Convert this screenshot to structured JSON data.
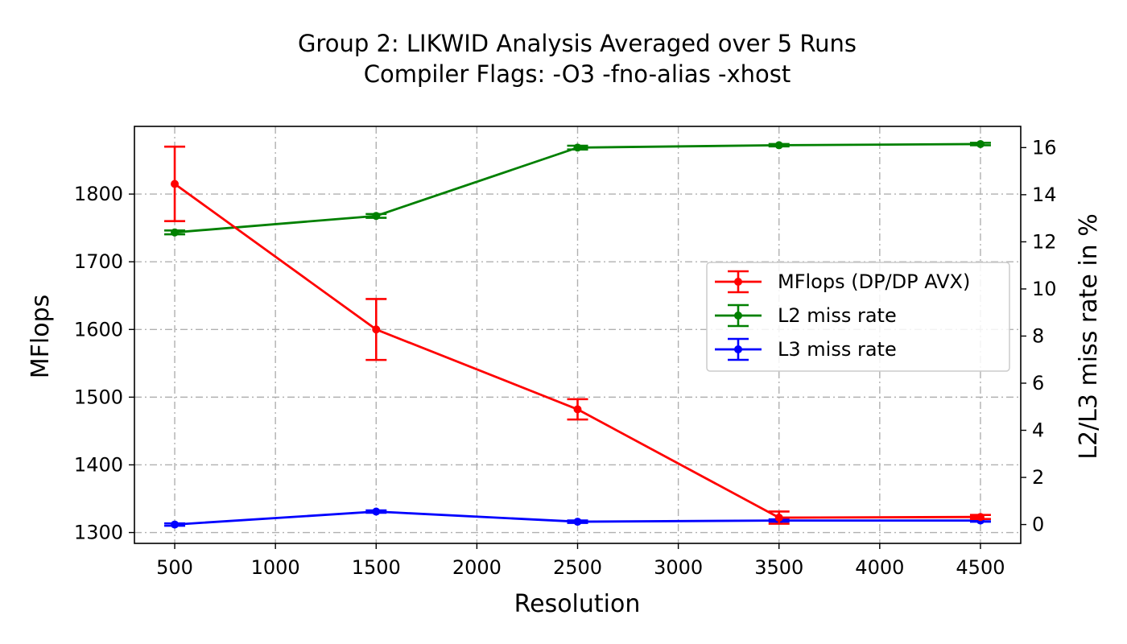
{
  "chart_data": {
    "type": "line",
    "title": "Group 2: LIKWID Analysis Averaged over 5 Runs",
    "subtitle": "Compiler Flags: -O3 -fno-alias -xhost",
    "xlabel": "Resolution",
    "ylabel": "MFlops",
    "ylabel_right": "L2/L3 miss rate in %",
    "x": [
      500,
      1500,
      2500,
      3500,
      4500
    ],
    "xlim": [
      300,
      4700
    ],
    "ylim": [
      1284,
      1900
    ],
    "ylim_right": [
      -0.8,
      16.9
    ],
    "x_ticks": [
      500,
      1000,
      1500,
      2000,
      2500,
      3000,
      3500,
      4000,
      4500
    ],
    "y_ticks": [
      1300,
      1400,
      1500,
      1600,
      1700,
      1800
    ],
    "y_ticks_right": [
      0,
      2,
      4,
      6,
      8,
      10,
      12,
      14,
      16
    ],
    "grid": true,
    "grid_style": "dash-dot",
    "legend_position": "center-right",
    "series": [
      {
        "name": "MFlops (DP/DP AVX)",
        "axis": "left",
        "color": "#ff0000",
        "values": [
          1815,
          1600,
          1482,
          1322,
          1323
        ],
        "errors": [
          55,
          45,
          15,
          9,
          3
        ]
      },
      {
        "name": "L2 miss rate",
        "axis": "right",
        "color": "#008000",
        "values": [
          12.4,
          13.1,
          16.0,
          16.1,
          16.15
        ],
        "errors": [
          0.08,
          0.08,
          0.08,
          0.05,
          0.05
        ]
      },
      {
        "name": "L3 miss rate",
        "axis": "right",
        "color": "#0000ff",
        "values": [
          0.0,
          0.55,
          0.12,
          0.17,
          0.17
        ],
        "errors": [
          0.05,
          0.05,
          0.05,
          0.05,
          0.05
        ]
      }
    ]
  }
}
